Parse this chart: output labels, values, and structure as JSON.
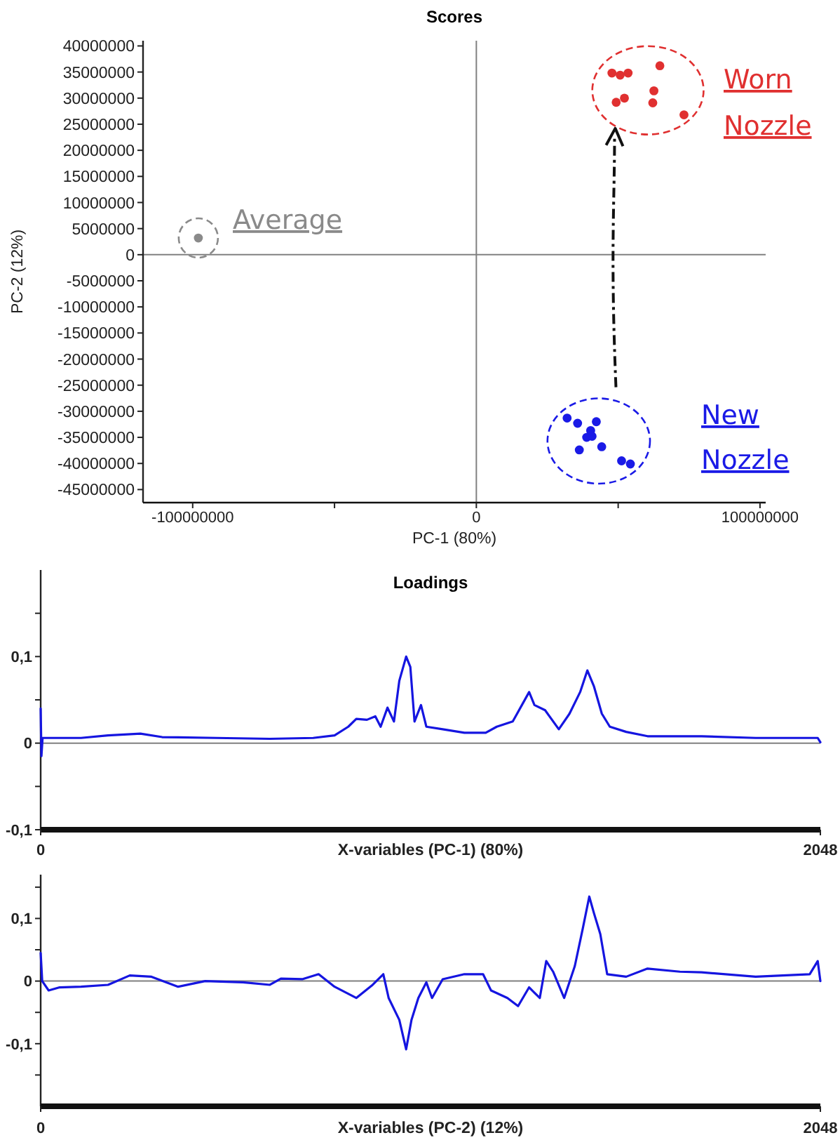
{
  "chart_data": [
    {
      "type": "scatter",
      "title": "Scores",
      "xlabel": "PC-1 (80%)",
      "ylabel": "PC-2 (12%)",
      "marker": "circle",
      "xlim": [
        -117500000,
        102000000
      ],
      "ylim": [
        -47500000,
        41000000
      ],
      "xticks": [
        -100000000,
        {
          "value": -50000000,
          "label": null
        },
        0,
        {
          "value": 50000000,
          "label": null
        },
        100000000
      ],
      "yticks": [
        40000000,
        35000000,
        30000000,
        25000000,
        20000000,
        15000000,
        10000000,
        5000000,
        0,
        -5000000,
        -10000000,
        -15000000,
        -20000000,
        -25000000,
        -30000000,
        -35000000,
        -40000000,
        -45000000
      ],
      "ref_lines": [
        {
          "axis": "x",
          "value": 0,
          "color": "#808080"
        },
        {
          "axis": "y",
          "value": 0,
          "color": "#808080"
        }
      ],
      "series": [
        {
          "name": "Average",
          "color": "#8a8a8a",
          "x": [
            -98000000
          ],
          "values": [
            3200000
          ]
        },
        {
          "name": "Worn Nozzle",
          "color": "#e03030",
          "x": [
            47800000,
            50700000,
            53500000,
            64700000,
            49300000,
            52200000,
            62600000,
            62200000,
            73200000
          ],
          "values": [
            34800000,
            34400000,
            34800000,
            36200000,
            29200000,
            30000000,
            31400000,
            29100000,
            26800000
          ]
        },
        {
          "name": "New Nozzle",
          "color": "#1a1ae6",
          "x": [
            32000000,
            35700000,
            42300000,
            40300000,
            38900000,
            40800000,
            36300000,
            44200000,
            51200000,
            54300000
          ],
          "values": [
            -31300000,
            -32300000,
            -32000000,
            -33700000,
            -35000000,
            -34800000,
            -37400000,
            -36800000,
            -39500000,
            -40100000
          ]
        }
      ]
    },
    {
      "type": "line",
      "title": "Loadings",
      "xlabel": "X-variables (PC-1) (80%)",
      "xlim": [
        0,
        2048
      ],
      "ylim": [
        -0.1,
        0.2
      ],
      "xticks": [
        0,
        2048
      ],
      "yticks": [
        {
          "value": -0.1,
          "label": "-0,1"
        },
        {
          "value": -0.05,
          "label": null
        },
        0,
        {
          "value": 0.05,
          "label": null
        },
        {
          "value": 0.1,
          "label": "0,1"
        },
        {
          "value": 0.15,
          "label": null
        }
      ],
      "ref_lines": [
        {
          "axis": "y",
          "value": 0,
          "color": "#808080"
        }
      ],
      "series": [
        {
          "color": "#1515e0",
          "x": [
            0,
            2,
            5,
            106,
            177,
            262,
            319,
            461,
            602,
            716,
            772,
            808,
            829,
            857,
            879,
            893,
            911,
            928,
            942,
            960,
            971,
            982,
            999,
            1013,
            1056,
            1113,
            1169,
            1198,
            1240,
            1283,
            1297,
            1325,
            1361,
            1389,
            1417,
            1436,
            1453,
            1474,
            1495,
            1538,
            1594,
            1736,
            1878,
            2041,
            2048
          ],
          "values": [
            0.04,
            -0.015,
            0.006,
            0.006,
            0.009,
            0.011,
            0.007,
            0.006,
            0.005,
            0.006,
            0.009,
            0.019,
            0.028,
            0.027,
            0.031,
            0.019,
            0.041,
            0.025,
            0.072,
            0.1,
            0.088,
            0.025,
            0.044,
            0.019,
            0.016,
            0.012,
            0.012,
            0.019,
            0.025,
            0.059,
            0.044,
            0.038,
            0.016,
            0.034,
            0.059,
            0.084,
            0.066,
            0.034,
            0.019,
            0.013,
            0.008,
            0.008,
            0.006,
            0.006,
            0.001
          ]
        }
      ]
    },
    {
      "type": "line",
      "xlabel": "X-variables (PC-2) (12%)",
      "xlim": [
        0,
        2048
      ],
      "ylim": [
        -0.2,
        0.17
      ],
      "xticks": [
        0,
        2048
      ],
      "yticks": [
        {
          "value": -0.15,
          "label": null
        },
        {
          "value": -0.1,
          "label": "-0,1"
        },
        {
          "value": -0.05,
          "label": null
        },
        0,
        {
          "value": 0.05,
          "label": null
        },
        {
          "value": 0.1,
          "label": "0,1"
        },
        {
          "value": 0.15,
          "label": null
        }
      ],
      "ref_lines": [
        {
          "axis": "y",
          "value": 0,
          "color": "#808080"
        }
      ],
      "series": [
        {
          "color": "#1515e0",
          "x": [
            0,
            4,
            21,
            50,
            106,
            177,
            234,
            291,
            361,
            432,
            531,
            602,
            631,
            687,
            730,
            772,
            829,
            872,
            900,
            914,
            942,
            960,
            974,
            992,
            1013,
            1028,
            1056,
            1113,
            1162,
            1183,
            1226,
            1254,
            1283,
            1311,
            1328,
            1346,
            1375,
            1403,
            1424,
            1441,
            1453,
            1470,
            1488,
            1538,
            1594,
            1679,
            1736,
            1878,
            2020,
            2041,
            2048
          ],
          "values": [
            0.045,
            0,
            -0.015,
            -0.01,
            -0.009,
            -0.006,
            0.009,
            0.007,
            -0.009,
            0,
            -0.002,
            -0.006,
            0.004,
            0.003,
            0.011,
            -0.009,
            -0.027,
            -0.006,
            0.011,
            -0.027,
            -0.062,
            -0.109,
            -0.062,
            -0.027,
            -0.002,
            -0.027,
            0.003,
            0.011,
            0.011,
            -0.015,
            -0.027,
            -0.04,
            -0.01,
            -0.027,
            0.032,
            0.015,
            -0.027,
            0.024,
            0.084,
            0.135,
            0.109,
            0.075,
            0.011,
            0.007,
            0.02,
            0.015,
            0.014,
            0.007,
            0.011,
            0.032,
            0
          ]
        }
      ]
    }
  ]
}
